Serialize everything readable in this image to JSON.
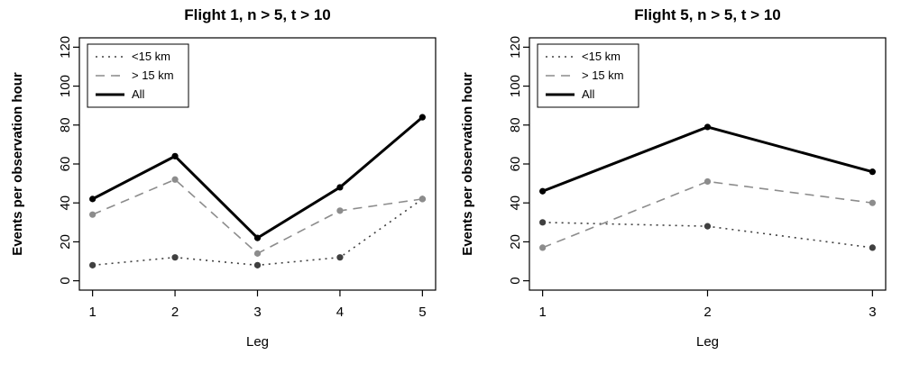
{
  "figure": {
    "background": "#ffffff",
    "axis_color": "#000000"
  },
  "chart_data": [
    {
      "type": "line",
      "title": "Flight 1, n > 5, t > 10",
      "xlabel": "Leg",
      "ylabel": "Events per observation hour",
      "x": [
        1,
        2,
        3,
        4,
        5
      ],
      "ylim": [
        0,
        120
      ],
      "yticks": [
        0,
        20,
        40,
        60,
        80,
        100,
        120
      ],
      "legend_position": "top-left",
      "series": [
        {
          "name": "<15 km",
          "style": "dotted",
          "color": "#404040",
          "width": 1.6,
          "values": [
            8,
            12,
            8,
            12,
            42
          ]
        },
        {
          "name": "> 15 km",
          "style": "dashed",
          "color": "#8c8c8c",
          "width": 1.6,
          "values": [
            34,
            52,
            14,
            36,
            42
          ]
        },
        {
          "name": "All",
          "style": "solid",
          "color": "#000000",
          "width": 3,
          "values": [
            42,
            64,
            22,
            48,
            84
          ]
        }
      ]
    },
    {
      "type": "line",
      "title": "Flight 5, n > 5, t > 10",
      "xlabel": "Leg",
      "ylabel": "Events per observation hour",
      "x": [
        1,
        2,
        3
      ],
      "ylim": [
        0,
        120
      ],
      "yticks": [
        0,
        20,
        40,
        60,
        80,
        100,
        120
      ],
      "legend_position": "top-left",
      "series": [
        {
          "name": "<15 km",
          "style": "dotted",
          "color": "#404040",
          "width": 1.6,
          "values": [
            30,
            28,
            17
          ]
        },
        {
          "name": "> 15 km",
          "style": "dashed",
          "color": "#8c8c8c",
          "width": 1.6,
          "values": [
            17,
            51,
            40
          ]
        },
        {
          "name": "All",
          "style": "solid",
          "color": "#000000",
          "width": 3,
          "values": [
            46,
            79,
            56
          ]
        }
      ]
    }
  ]
}
